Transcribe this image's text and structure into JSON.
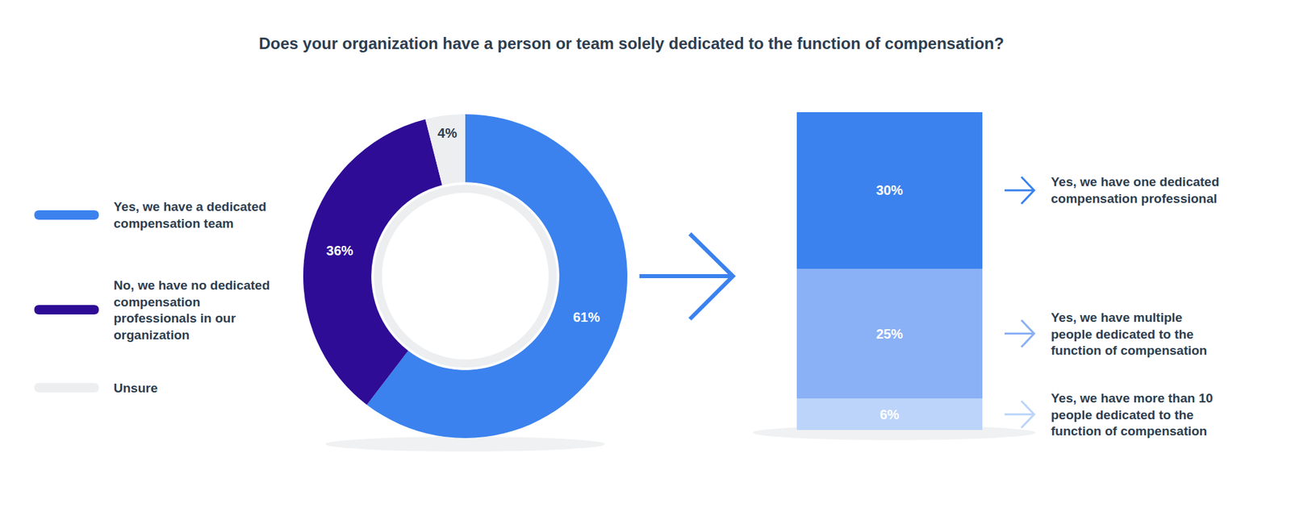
{
  "chart_data": [
    {
      "type": "pie",
      "title": "Does your organization have a person or team solely dedicated to the function of compensation?",
      "categories": [
        "Yes, we have a dedicated compensation team",
        "No, we have no dedicated compensation professionals in our organization",
        "Unsure"
      ],
      "values": [
        61,
        36,
        4
      ],
      "value_labels": [
        "61%",
        "36%",
        "4%"
      ],
      "colors": [
        "#3b82ee",
        "#2e0c96",
        "#eceef0"
      ],
      "data_labels": true,
      "legend": "left"
    },
    {
      "type": "bar",
      "stacked": true,
      "categories": [
        null
      ],
      "series": [
        {
          "name": "Yes, we have one dedicated compensation professional",
          "color": "#3b82ee",
          "values": [
            30
          ],
          "value_labels": [
            "30%"
          ]
        },
        {
          "name": "Yes, we have multiple people dedicated to the function of compensation",
          "color": "#8ab0f5",
          "values": [
            25
          ],
          "value_labels": [
            "25%"
          ]
        },
        {
          "name": "Yes, we have more than 10 people dedicated to the function of compensation",
          "color": "#bcd4fa",
          "values": [
            6
          ],
          "value_labels": [
            "6%"
          ]
        }
      ],
      "ylim": [
        0,
        61
      ],
      "data_labels": true,
      "tick_labels": false,
      "legend": "right"
    }
  ]
}
